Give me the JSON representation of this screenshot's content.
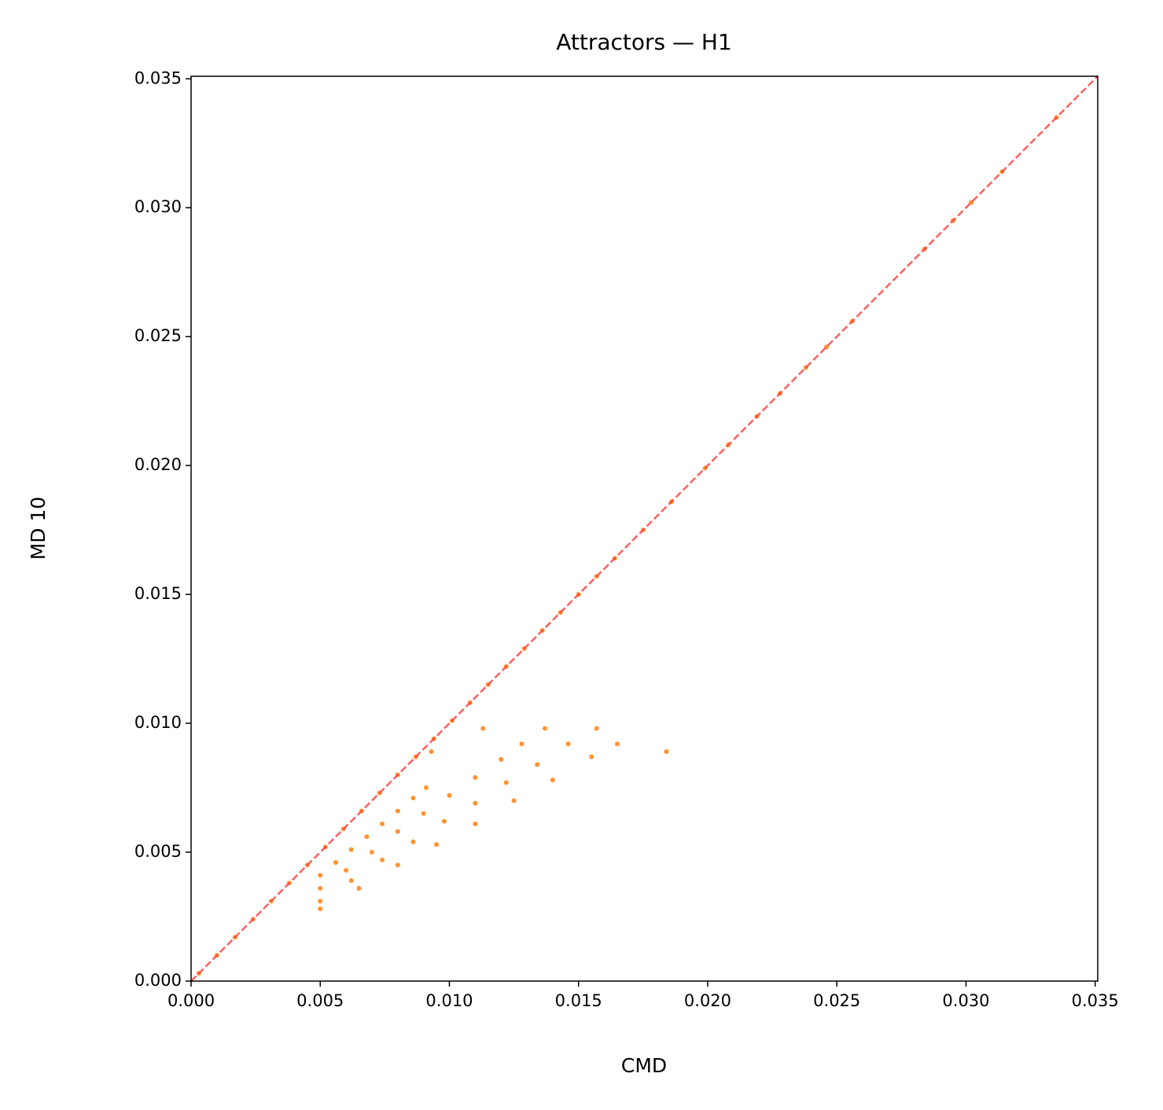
{
  "chart_data": {
    "type": "scatter",
    "title": "Attractors — H1",
    "x_label": "CMD",
    "y_label": "MD 10",
    "xlim": [
      0,
      0.0351
    ],
    "ylim": [
      0,
      0.0351
    ],
    "xticks": [
      {
        "value": 0,
        "label": "0.000"
      },
      0.005,
      {
        "value": 0.01,
        "label": "0.010"
      },
      0.015,
      {
        "value": 0.02,
        "label": "0.020"
      },
      0.025,
      {
        "value": 0.03,
        "label": "0.030"
      },
      0.035
    ],
    "yticks": [
      {
        "value": 0,
        "label": "0.000"
      },
      0.005,
      {
        "value": 0.01,
        "label": "0.010"
      },
      0.015,
      {
        "value": 0.02,
        "label": "0.020"
      },
      0.025,
      {
        "value": 0.03,
        "label": "0.030"
      },
      0.035
    ],
    "diagonal": true,
    "diagonal_color": "#ff4444",
    "series": [
      {
        "color": "#ff7f0e",
        "x": [
          0.0003,
          0.001,
          0.0017,
          0.0024,
          0.0031,
          0.0038,
          0.0045,
          0.0052,
          0.0059,
          0.0066,
          0.0073,
          0.008,
          0.0087,
          0.0094,
          0.0101,
          0.0108,
          0.0115,
          0.0122,
          0.0129,
          0.0136,
          0.0143,
          0.015,
          0.0157,
          0.0164,
          0.0175,
          0.0186,
          0.0199,
          0.0208,
          0.0219,
          0.0228,
          0.0238,
          0.0246,
          0.0256,
          0.0284,
          0.0295,
          0.0302,
          0.0314,
          0.0335,
          0.005,
          0.0056,
          0.0062,
          0.0068,
          0.0074,
          0.008,
          0.0086,
          0.0091,
          0.005,
          0.006,
          0.007,
          0.008,
          0.009,
          0.01,
          0.011,
          0.012,
          0.0128,
          0.005,
          0.0062,
          0.0074,
          0.0086,
          0.0098,
          0.011,
          0.0122,
          0.0134,
          0.0146,
          0.005,
          0.0065,
          0.008,
          0.0095,
          0.011,
          0.0125,
          0.014,
          0.0155,
          0.0165,
          0.0093,
          0.0113,
          0.0137,
          0.0157,
          0.0184
        ],
        "values": [
          0.0003,
          0.001,
          0.0017,
          0.0024,
          0.0031,
          0.0038,
          0.0045,
          0.0052,
          0.0059,
          0.0066,
          0.0073,
          0.008,
          0.0087,
          0.0094,
          0.0101,
          0.0108,
          0.0115,
          0.0122,
          0.0129,
          0.0136,
          0.0143,
          0.015,
          0.0157,
          0.0164,
          0.0175,
          0.0186,
          0.0199,
          0.0208,
          0.0219,
          0.0228,
          0.0238,
          0.0246,
          0.0256,
          0.0284,
          0.0295,
          0.0302,
          0.0314,
          0.0335,
          0.0041,
          0.0046,
          0.0051,
          0.0056,
          0.0061,
          0.0066,
          0.0071,
          0.0075,
          0.0036,
          0.0043,
          0.005,
          0.0058,
          0.0065,
          0.0072,
          0.0079,
          0.0086,
          0.0092,
          0.0031,
          0.0039,
          0.0047,
          0.0054,
          0.0062,
          0.0069,
          0.0077,
          0.0084,
          0.0092,
          0.0028,
          0.0036,
          0.0045,
          0.0053,
          0.0061,
          0.007,
          0.0078,
          0.0087,
          0.0092,
          0.0089,
          0.0098,
          0.0098,
          0.0098,
          0.0089
        ]
      }
    ]
  }
}
